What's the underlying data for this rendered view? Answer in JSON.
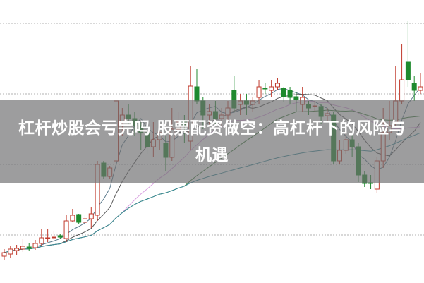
{
  "title": "杠杆炒股会亏完吗 股票配资做空：高杠杆下的风险与机遇",
  "colors": {
    "up": "#c0392b",
    "down": "#1f8a2e",
    "grid": "#b0b0b0",
    "ma5": "#5b7a8c",
    "ma10": "#555555",
    "ma20": "#d9a0e0",
    "ma30": "#3c7a3c",
    "ma60": "#3a8a9a"
  },
  "chart_data": {
    "type": "candlestick",
    "grid": true,
    "ylim": [
      6,
      41
    ],
    "gridlines": [
      10,
      20,
      30,
      40
    ],
    "moving_averages": [
      5,
      10,
      20,
      30,
      60
    ],
    "candles": [
      [
        7.0,
        7.5,
        8.0,
        6.5
      ],
      [
        7.3,
        8.0,
        8.5,
        6.8
      ],
      [
        7.8,
        8.1,
        8.6,
        7.2
      ],
      [
        8.0,
        8.4,
        9.5,
        7.6
      ],
      [
        8.3,
        8.1,
        8.8,
        7.8
      ],
      [
        8.2,
        8.8,
        9.3,
        7.9
      ],
      [
        8.8,
        9.6,
        10.8,
        8.5
      ],
      [
        9.6,
        9.6,
        10.9,
        9.0
      ],
      [
        9.6,
        9.7,
        10.5,
        9.2
      ],
      [
        9.9,
        9.7,
        10.2,
        9.5
      ],
      [
        9.5,
        12.0,
        12.8,
        9.0
      ],
      [
        12.0,
        12.8,
        13.7,
        11.8
      ],
      [
        12.9,
        11.8,
        13.0,
        11.5
      ],
      [
        11.8,
        12.3,
        12.8,
        11.7
      ],
      [
        12.3,
        13.0,
        14.0,
        11.0
      ],
      [
        12.8,
        20.0,
        20.5,
        12.0
      ],
      [
        20.2,
        18.3,
        20.5,
        18.0
      ],
      [
        18.3,
        19.5,
        19.8,
        18.0
      ],
      [
        20.5,
        29.0,
        29.5,
        19.8
      ],
      [
        26.0,
        27.0,
        28.0,
        24.0
      ],
      [
        27.0,
        26.5,
        28.5,
        25.5
      ],
      [
        26.5,
        25.5,
        27.5,
        24.0
      ],
      [
        25.5,
        24.5,
        26.0,
        22.0
      ],
      [
        24.5,
        22.5,
        25.0,
        21.5
      ],
      [
        22.5,
        23.5,
        26.0,
        21.0
      ],
      [
        23.5,
        24.5,
        25.5,
        22.0
      ],
      [
        23.0,
        21.0,
        24.0,
        19.0
      ],
      [
        21.0,
        25.0,
        28.0,
        20.5
      ],
      [
        25.0,
        26.0,
        27.5,
        24.0
      ],
      [
        26.0,
        25.5,
        27.0,
        23.0
      ],
      [
        23.3,
        31.1,
        34.0,
        22.0
      ],
      [
        31.0,
        29.0,
        33.5,
        28.5
      ],
      [
        29.0,
        27.0,
        29.5,
        25.0
      ],
      [
        27.0,
        27.5,
        28.5,
        25.5
      ],
      [
        27.5,
        26.5,
        29.0,
        25.5
      ],
      [
        26.5,
        27.0,
        28.0,
        25.5
      ],
      [
        27.0,
        28.0,
        29.0,
        26.0
      ],
      [
        30.5,
        28.0,
        32.5,
        27.5
      ],
      [
        28.5,
        29.0,
        30.0,
        27.0
      ],
      [
        29.0,
        28.5,
        30.0,
        27.0
      ],
      [
        28.5,
        29.0,
        29.5,
        27.5
      ],
      [
        29.5,
        31.0,
        32.0,
        28.5
      ],
      [
        30.8,
        30.7,
        31.5,
        30.0
      ],
      [
        30.5,
        31.0,
        32.0,
        29.5
      ],
      [
        31.0,
        31.5,
        32.2,
        30.5
      ],
      [
        30.8,
        29.6,
        31.0,
        28.8
      ],
      [
        30.5,
        29.5,
        31.0,
        28.5
      ],
      [
        29.6,
        29.2,
        30.2,
        27.5
      ],
      [
        28.5,
        29.5,
        31.0,
        27.5
      ],
      [
        28.5,
        28.0,
        29.0,
        27.0
      ],
      [
        28.2,
        28.3,
        29.0,
        27.5
      ],
      [
        28.2,
        26.8,
        28.6,
        25.8
      ],
      [
        26.9,
        27.2,
        28.0,
        26.0
      ],
      [
        27.0,
        20.5,
        27.5,
        20.0
      ],
      [
        20.5,
        22.0,
        23.5,
        20.0
      ],
      [
        22.0,
        23.5,
        25.0,
        21.5
      ],
      [
        23.5,
        22.5,
        24.5,
        21.0
      ],
      [
        22.5,
        18.5,
        23.0,
        17.5
      ],
      [
        18.5,
        17.3,
        19.0,
        16.8
      ],
      [
        17.4,
        17.3,
        18.5,
        16.5
      ],
      [
        16.5,
        20.5,
        21.0,
        16.0
      ],
      [
        20.5,
        24.5,
        28.0,
        19.5
      ],
      [
        24.5,
        25.5,
        29.0,
        23.5
      ],
      [
        26.0,
        29.0,
        34.0,
        25.5
      ],
      [
        29.0,
        32.0,
        37.0,
        28.5
      ],
      [
        34.5,
        32.0,
        40.3,
        31.0
      ],
      [
        31.5,
        30.5,
        32.5,
        29.0
      ],
      [
        30.5,
        31.0,
        33.0,
        30.0
      ]
    ]
  }
}
